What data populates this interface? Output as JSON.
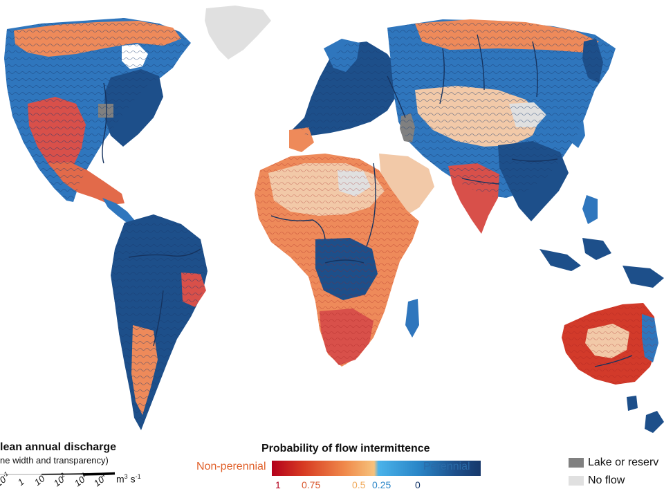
{
  "map": {
    "colors": {
      "ocean": "#ffffff",
      "non_perennial": "#d23a2a",
      "mid_high": "#ee8a5a",
      "mid_low": "#f2c9a8",
      "perennial_light": "#3fa3e0",
      "perennial_dark": "#1d4f8a",
      "lake": "#808080",
      "no_flow": "#e0e0e0"
    }
  },
  "discharge_legend": {
    "title": "lean annual discharge",
    "subtitle": "ne width and transparency)",
    "ticks": [
      {
        "base": "10",
        "exp": "-1"
      },
      {
        "base": "1",
        "exp": ""
      },
      {
        "base": "10",
        "exp": ""
      },
      {
        "base": "10",
        "exp": "2"
      },
      {
        "base": "10",
        "exp": "3"
      },
      {
        "base": "10",
        "exp": "4"
      }
    ],
    "unit_base": "m",
    "unit_exp1": "3",
    "unit_mid": " s",
    "unit_exp2": "-1"
  },
  "intermittence_legend": {
    "title": "Probability of flow intermittence",
    "left_label": "Non-perennial",
    "right_label": "Perennial",
    "ticks": [
      "1",
      "0.75",
      "0.5",
      "0.25",
      "0"
    ],
    "tick_colors": [
      "#b3001b",
      "#d9572e",
      "#f0a95a",
      "#2a86c8",
      "#17386b"
    ],
    "left_label_color": "#e0602a",
    "right_label_color": "#2a6aa8"
  },
  "right_legend": {
    "lake_label": "Lake or reserv",
    "no_flow_label": "No flow",
    "lake_color": "#808080",
    "no_flow_color": "#e0e0e0"
  }
}
